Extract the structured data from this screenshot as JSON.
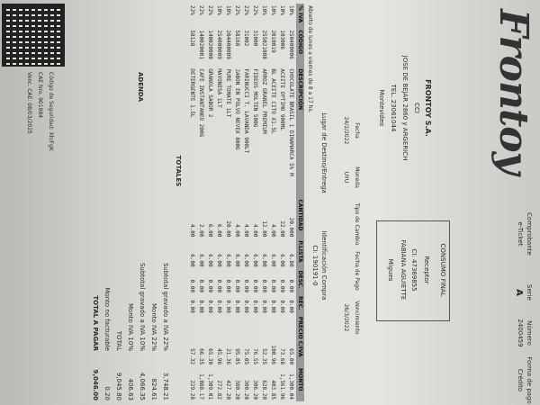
{
  "header": {
    "logo": "Frontoy",
    "comprobante_label": "Comprobante",
    "comprobante": "e-Ticket",
    "serie_label": "Serie",
    "serie": "A",
    "numero_label": "Número",
    "numero": "2400459",
    "pago_label": "Forma de pago",
    "pago": "Crédito"
  },
  "company": [
    "FRONTOY S.A.",
    "CCI",
    "JOSE DE BEJAR 2860 y ARGERICH",
    "TEL. 23061044",
    "Montevideo"
  ],
  "receptor": {
    "type": "CONSUMO FINAL",
    "label": "Receptor",
    "ci": "CI: 47369855",
    "name": "FABIANA AGUIETTE",
    "city": "Migues"
  },
  "info": {
    "headers": [
      "Fecha",
      "Moneda",
      "Tipo de Cambio",
      "Fecha de Pago",
      "Vencimiento"
    ],
    "values": [
      "24/2/2022",
      "UYU",
      "",
      "",
      "26/3/2022"
    ]
  },
  "place": {
    "label": "Lugar de Destino/Entrega",
    "id_label": "Identificación Compra",
    "id": "CI: 190191-0"
  },
  "hours": "Abierto de lunes a viernes de 8 a 17 hs.",
  "table": {
    "headers": [
      "% IVA",
      "CÓDIGO",
      "DESCRIPCIÓN",
      "CANTIDAD",
      "P.LISTA",
      "DESC.",
      "REC.",
      "PRECIO C/IVA",
      "MONTO"
    ],
    "rows": [
      [
        "10%",
        "250400006",
        "CHOCOLATE BRASIL 1 DINAMARCA 5% M",
        "20.000",
        "6.80",
        "0.00",
        "0.00",
        "65.00",
        "1,300.04"
      ],
      [
        "10%",
        "103006",
        "ACEITE OPTIMO 900ML",
        "22.00",
        "6.00",
        "0.00",
        "0.00",
        "73.68",
        "1,561.96"
      ],
      [
        "10%",
        "2010019",
        "BL ACEITE CITO X1.5L",
        "4.00",
        "6.00",
        "0.00",
        "0.00",
        "100.96",
        "403.85"
      ],
      [
        "10%",
        "255021008",
        "ARROZ GRANEL PREMIUM",
        "12.00",
        "6.00",
        "0.00",
        "0.00",
        "52.35",
        "628.20"
      ],
      [
        "22%",
        "31000",
        "FIDEOS MOLTEN 500G",
        "4.00",
        "6.00",
        "0.00",
        "0.00",
        "76.55",
        "306.20"
      ],
      [
        "22%",
        "31002",
        "FARINUCCI T. LAVANDA 900LT",
        "4.00",
        "6.00",
        "0.00",
        "0.00",
        "75.05",
        "300.20"
      ],
      [
        "22%",
        "58168",
        "JABON EN POLVO NEVEX 800G",
        "4.00",
        "6.00",
        "0.00",
        "0.00",
        "95.05",
        "380.20"
      ],
      [
        "10%",
        "204400009",
        "PURE TOMATE 1LT",
        "20.00",
        "6.00",
        "0.00",
        "0.00",
        "21.36",
        "427.20"
      ],
      [
        "10%",
        "254000009",
        "MAYONESA 1LT",
        "6.00",
        "6.00",
        "0.00",
        "0.00",
        "45.96",
        "272.82"
      ],
      [
        "22%",
        "140020000",
        "GRANOLA SABOR 2",
        "6.00",
        "6.00",
        "0.00",
        "0.00",
        "65.30",
        "1,309.01"
      ],
      [
        "22%",
        "140020001",
        "CAFE INSTANTANEO 200G",
        "2.00",
        "6.00",
        "0.00",
        "0.00",
        "66.35",
        "1,088.17"
      ],
      [
        "22%",
        "58128",
        "DETERGENTE 1.5L",
        "4.00",
        "6.00",
        "0.00",
        "0.00",
        "57.32",
        "229.28"
      ]
    ]
  },
  "totals_label": "TOTALES",
  "totals": [
    {
      "label": "Subtotal gravado a IVA 22%",
      "value": "3,748.21"
    },
    {
      "label": "Monto IVA 22%",
      "value": "824.61"
    },
    {
      "label": "Subtotal gravado a IVA 10%",
      "value": "4,066.35"
    },
    {
      "label": "Monto IVA 10%",
      "value": "406.63"
    },
    {
      "label": "TOTAL",
      "value": "9,045.80"
    },
    {
      "label": "Monto no facturable",
      "value": "0.20"
    },
    {
      "label": "TOTAL A PAGAR",
      "value": "9,046.00"
    }
  ],
  "adenda": "ADENDA",
  "footer": [
    "Código de Seguridad: Xh/FgK",
    "CAE Nro. 901984",
    "Venc. CAE: 08/03/2025"
  ]
}
